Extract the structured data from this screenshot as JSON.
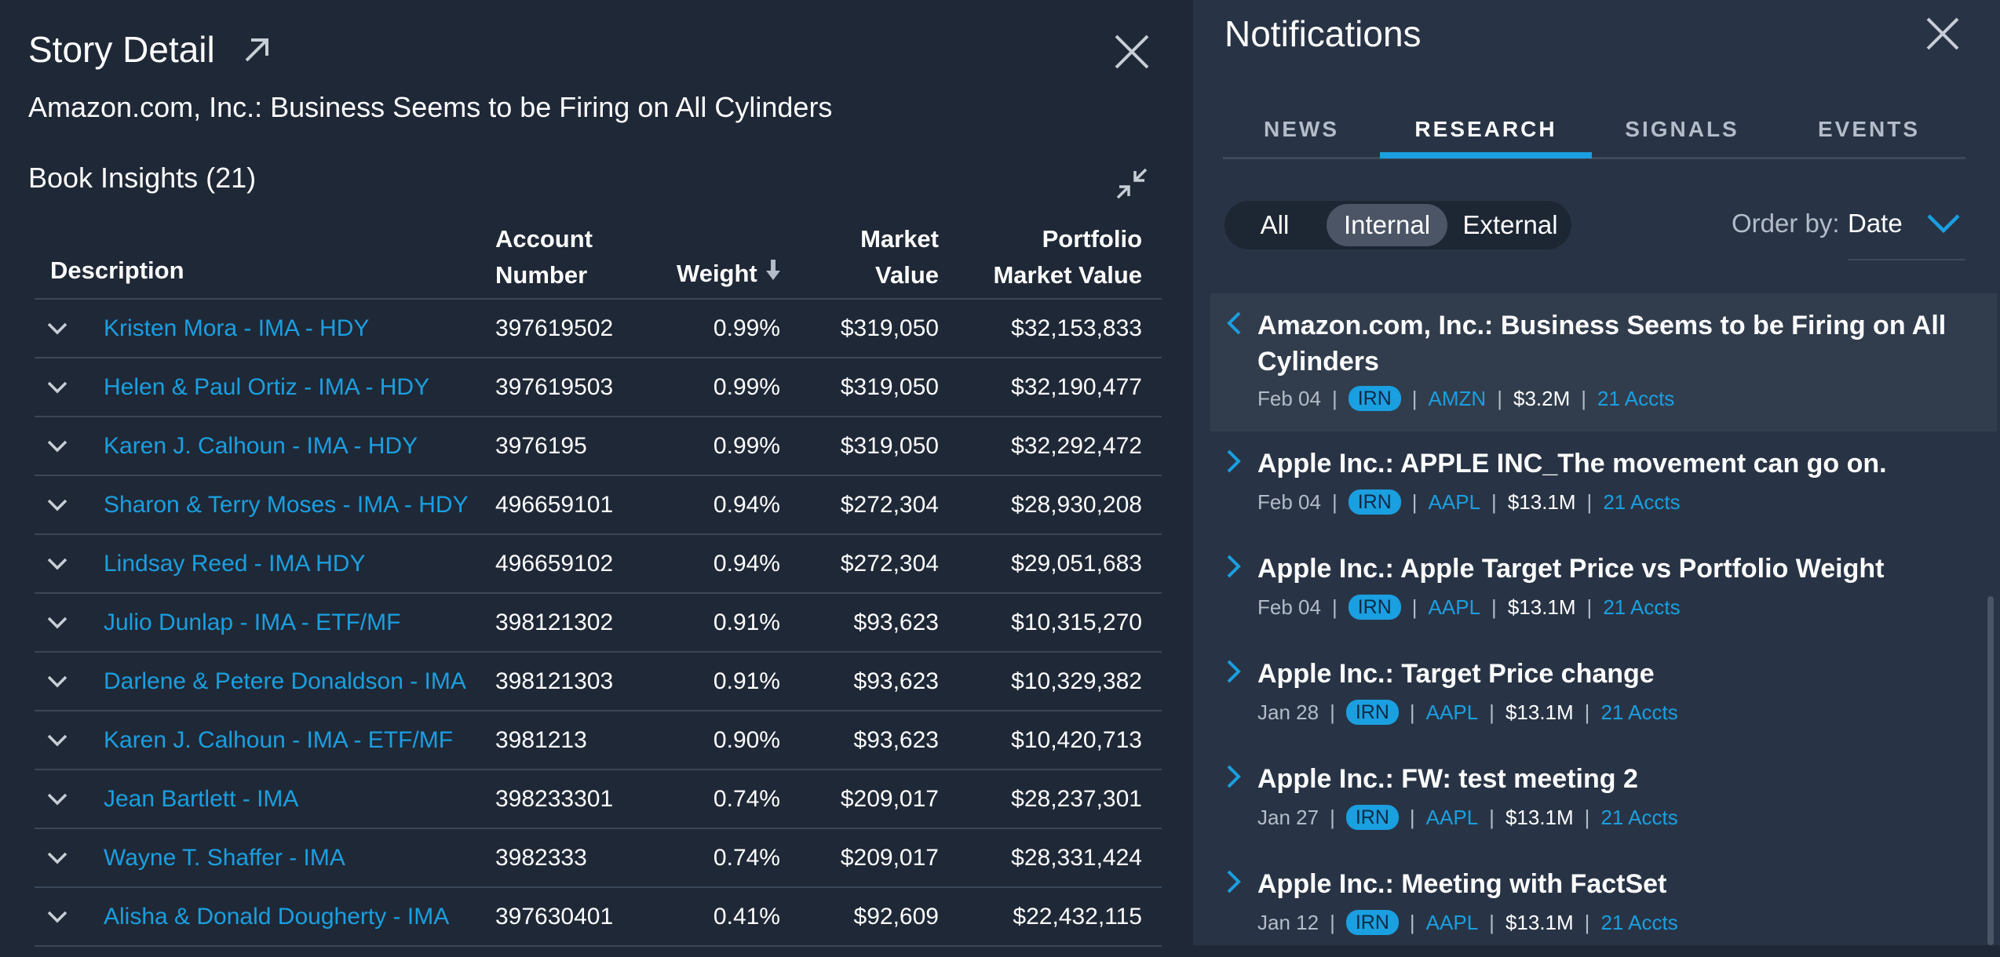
{
  "story": {
    "title": "Story Detail",
    "headline": "Amazon.com, Inc.: Business Seems to be Firing on All Cylinders",
    "book_title": "Book Insights (21)"
  },
  "table": {
    "headers": {
      "description": "Description",
      "account_number_1": "Account",
      "account_number_2": "Number",
      "weight": "Weight",
      "market_value_1": "Market",
      "market_value_2": "Value",
      "portfolio_mv_1": "Portfolio",
      "portfolio_mv_2": "Market Value"
    },
    "rows": [
      {
        "desc": "Kristen Mora   - IMA   -  HDY",
        "acct": "397619502",
        "weight": "0.99%",
        "mv": "$319,050",
        "pmv": "$32,153,833"
      },
      {
        "desc": "Helen & Paul Ortiz    -  IMA  - HDY",
        "acct": "397619503",
        "weight": "0.99%",
        "mv": "$319,050",
        "pmv": "$32,190,477"
      },
      {
        "desc": "Karen J. Calhoun    - IMA   - HDY",
        "acct": "3976195",
        "weight": "0.99%",
        "mv": "$319,050",
        "pmv": "$32,292,472"
      },
      {
        "desc": "Sharon & Terry Moses   -   IMA   -  HDY",
        "acct": "496659101",
        "weight": "0.94%",
        "mv": "$272,304",
        "pmv": "$28,930,208"
      },
      {
        "desc": "Lindsay Reed   -  IMA HDY",
        "acct": "496659102",
        "weight": "0.94%",
        "mv": "$272,304",
        "pmv": "$29,051,683"
      },
      {
        "desc": "Julio Dunlap    - IMA  -  ETF/MF",
        "acct": "398121302",
        "weight": "0.91%",
        "mv": "$93,623",
        "pmv": "$10,315,270"
      },
      {
        "desc": "Darlene & Petere Donaldson - IMA",
        "acct": "398121303",
        "weight": "0.91%",
        "mv": "$93,623",
        "pmv": "$10,329,382"
      },
      {
        "desc": "Karen J. Calhoun  -  IMA  -  ETF/MF",
        "acct": "3981213",
        "weight": "0.90%",
        "mv": "$93,623",
        "pmv": "$10,420,713"
      },
      {
        "desc": "Jean Bartlett    -  IMA",
        "acct": "398233301",
        "weight": "0.74%",
        "mv": "$209,017",
        "pmv": "$28,237,301"
      },
      {
        "desc": "Wayne T. Shaffer   -  IMA",
        "acct": "3982333",
        "weight": "0.74%",
        "mv": "$209,017",
        "pmv": "$28,331,424"
      },
      {
        "desc": "Alisha & Donald Dougherty - IMA",
        "acct": "397630401",
        "weight": "0.41%",
        "mv": "$92,609",
        "pmv": "$22,432,115"
      }
    ]
  },
  "notifications": {
    "title": "Notifications",
    "tabs": [
      "NEWS",
      "RESEARCH",
      "SIGNALS",
      "EVENTS"
    ],
    "active_tab": "RESEARCH",
    "filters": [
      "All",
      "Internal",
      "External"
    ],
    "active_filter": "Internal",
    "order_by_label": "Order by:",
    "order_by_value": "Date",
    "items": [
      {
        "title": "Amazon.com, Inc.: Business Seems to be Firing on All Cylinders",
        "date": "Feb 04",
        "badge": "IRN",
        "ticker": "AMZN",
        "amount": "$3.2M",
        "accts": "21 Accts",
        "selected": true
      },
      {
        "title": "Apple Inc.: APPLE INC_The movement can go on.",
        "date": "Feb 04",
        "badge": "IRN",
        "ticker": "AAPL",
        "amount": "$13.1M",
        "accts": "21 Accts"
      },
      {
        "title": "Apple Inc.: Apple Target Price vs Portfolio Weight",
        "date": "Feb 04",
        "badge": "IRN",
        "ticker": "AAPL",
        "amount": "$13.1M",
        "accts": "21 Accts"
      },
      {
        "title": "Apple Inc.: Target Price change",
        "date": "Jan 28",
        "badge": "IRN",
        "ticker": "AAPL",
        "amount": "$13.1M",
        "accts": "21 Accts"
      },
      {
        "title": "Apple Inc.: FW: test meeting 2",
        "date": "Jan 27",
        "badge": "IRN",
        "ticker": "AAPL",
        "amount": "$13.1M",
        "accts": "21 Accts"
      },
      {
        "title": "Apple Inc.: Meeting with FactSet",
        "date": "Jan 12",
        "badge": "IRN",
        "ticker": "AAPL",
        "amount": "$13.1M",
        "accts": "21 Accts"
      }
    ]
  },
  "colors": {
    "accent": "#1a9fe0",
    "panel_left": "#1f2836",
    "panel_right": "#283445"
  }
}
